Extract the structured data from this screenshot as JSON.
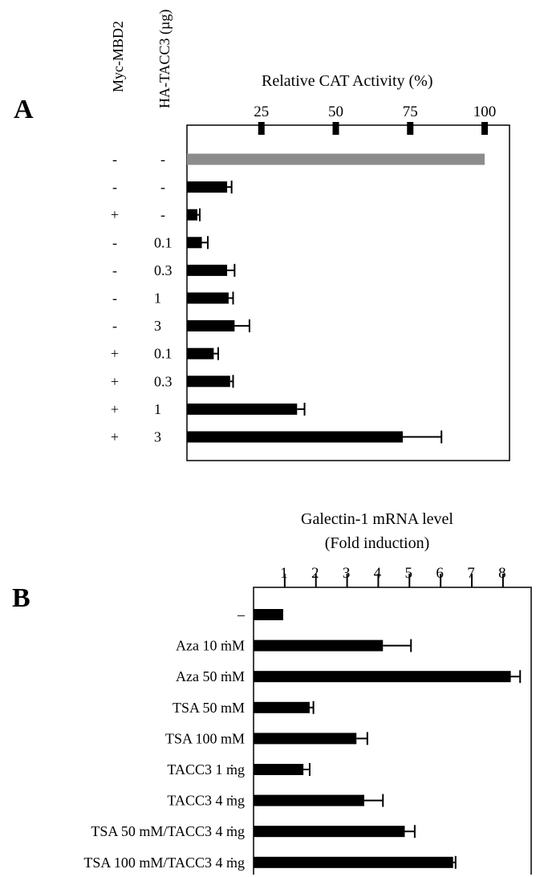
{
  "colors": {
    "bar": "#000000",
    "control_bar": "#8c8c8c",
    "frame": "#000000",
    "background": "#ffffff"
  },
  "chart_data": [
    {
      "panel": "A",
      "type": "bar",
      "orientation": "horizontal",
      "title": "Relative CAT Activity (%)",
      "xlim": [
        0,
        100
      ],
      "x_ticks": [
        25,
        50,
        75,
        100
      ],
      "grid": false,
      "column_headers": [
        "Myc-MBD2",
        "HA-TACC3 (µg)"
      ],
      "rows": [
        {
          "myc_mbd2": "-",
          "ha_tacc3": "-",
          "value": 100,
          "error": 0,
          "color": "gray"
        },
        {
          "myc_mbd2": "-",
          "ha_tacc3": "-",
          "value": 13.5,
          "error": 1.5
        },
        {
          "myc_mbd2": "+",
          "ha_tacc3": "-",
          "value": 3.5,
          "error": 0.8
        },
        {
          "myc_mbd2": "-",
          "ha_tacc3": "0.1",
          "value": 5,
          "error": 2
        },
        {
          "myc_mbd2": "-",
          "ha_tacc3": "0.3",
          "value": 13.5,
          "error": 2.5
        },
        {
          "myc_mbd2": "-",
          "ha_tacc3": "1",
          "value": 14,
          "error": 1.5
        },
        {
          "myc_mbd2": "-",
          "ha_tacc3": "3",
          "value": 16,
          "error": 5
        },
        {
          "myc_mbd2": "+",
          "ha_tacc3": "0.1",
          "value": 9,
          "error": 1.5
        },
        {
          "myc_mbd2": "+",
          "ha_tacc3": "0.3",
          "value": 14.5,
          "error": 1
        },
        {
          "myc_mbd2": "+",
          "ha_tacc3": "1",
          "value": 37,
          "error": 2.5
        },
        {
          "myc_mbd2": "+",
          "ha_tacc3": "3",
          "value": 72.5,
          "error": 13
        }
      ]
    },
    {
      "panel": "B",
      "type": "bar",
      "orientation": "horizontal",
      "title": "Galectin-1 mRNA level",
      "subtitle": "(Fold induction)",
      "xlim": [
        0,
        8.75
      ],
      "x_ticks": [
        1,
        2,
        3,
        4,
        5,
        6,
        7,
        8
      ],
      "grid": false,
      "categories": [
        "–",
        "Aza 10 ṁM",
        "Aza 50 ṁM",
        "TSA 50 mM",
        "TSA 100 mM",
        "TACC3 1 ṁg",
        "TACC3 4 ṁg",
        "TSA 50 mM/TACC3 4 ṁg",
        "TSA 100 mM/TACC3 4 ṁg"
      ],
      "values": [
        0.95,
        4.15,
        8.25,
        1.8,
        3.3,
        1.6,
        3.55,
        4.85,
        6.4
      ],
      "errors": [
        0,
        0.9,
        0.3,
        0.12,
        0.35,
        0.2,
        0.6,
        0.32,
        0.08
      ]
    }
  ]
}
